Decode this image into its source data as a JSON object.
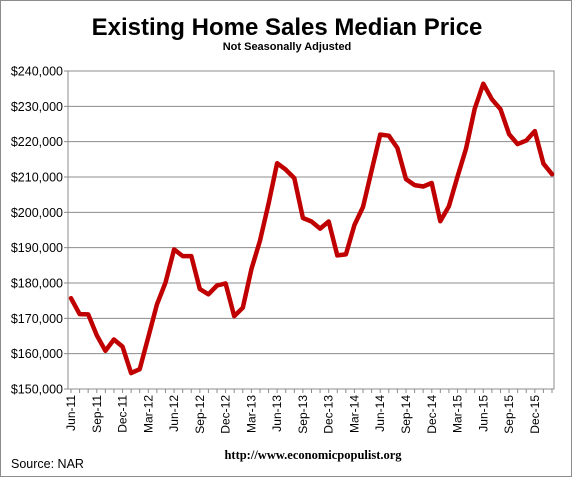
{
  "chart_data": {
    "type": "line",
    "title": "Existing Home Sales Median Price",
    "subtitle": "Not Seasonally Adjusted",
    "xlabel": "",
    "ylabel": "",
    "ylim": [
      150000,
      240000
    ],
    "yticks": [
      150000,
      160000,
      170000,
      180000,
      190000,
      200000,
      210000,
      220000,
      230000,
      240000
    ],
    "ytick_labels": [
      "$150,000",
      "$160,000",
      "$170,000",
      "$180,000",
      "$190,000",
      "$200,000",
      "$210,000",
      "$220,000",
      "$230,000",
      "$240,000"
    ],
    "xtick_labels": [
      "Jun-11",
      "Sep-11",
      "Dec-11",
      "Mar-12",
      "Jun-12",
      "Sep-12",
      "Dec-12",
      "Mar-13",
      "Jun-13",
      "Sep-13",
      "Dec-13",
      "Mar-14",
      "Jun-14",
      "Sep-14",
      "Dec-14",
      "Mar-15",
      "Jun-15",
      "Sep-15",
      "Dec-15"
    ],
    "grid": true,
    "legend": "none",
    "series": [
      {
        "color": "#c00000",
        "x": [
          "Jun-11",
          "Jul-11",
          "Aug-11",
          "Sep-11",
          "Oct-11",
          "Nov-11",
          "Dec-11",
          "Jan-12",
          "Feb-12",
          "Mar-12",
          "Apr-12",
          "May-12",
          "Jun-12",
          "Jul-12",
          "Aug-12",
          "Sep-12",
          "Oct-12",
          "Nov-12",
          "Dec-12",
          "Jan-13",
          "Feb-13",
          "Mar-13",
          "Apr-13",
          "May-13",
          "Jun-13",
          "Jul-13",
          "Aug-13",
          "Sep-13",
          "Oct-13",
          "Nov-13",
          "Dec-13",
          "Jan-14",
          "Feb-14",
          "Mar-14",
          "Apr-14",
          "May-14",
          "Jun-14",
          "Jul-14",
          "Aug-14",
          "Sep-14",
          "Oct-14",
          "Nov-14",
          "Dec-14",
          "Jan-15",
          "Feb-15",
          "Mar-15",
          "Apr-15",
          "May-15",
          "Jun-15",
          "Jul-15",
          "Aug-15",
          "Sep-15",
          "Oct-15",
          "Nov-15",
          "Dec-15",
          "Jan-16",
          "Feb-16"
        ],
        "values": [
          175700,
          171200,
          171100,
          165200,
          160800,
          164000,
          162000,
          154500,
          155600,
          164700,
          173900,
          180100,
          189500,
          187600,
          187600,
          178300,
          176800,
          179300,
          179900,
          170600,
          173000,
          183900,
          192000,
          202500,
          213900,
          212100,
          209700,
          198400,
          197400,
          195400,
          197400,
          187800,
          188100,
          196400,
          201500,
          211800,
          222000,
          221700,
          218200,
          209400,
          207700,
          207300,
          208300,
          197500,
          201700,
          210100,
          218100,
          229300,
          236400,
          232000,
          229200,
          222100,
          219300,
          220300,
          223000,
          213800,
          210800
        ]
      }
    ]
  },
  "footer": {
    "source": "Source:  NAR",
    "url": "http://www.economicpopulist.org"
  }
}
